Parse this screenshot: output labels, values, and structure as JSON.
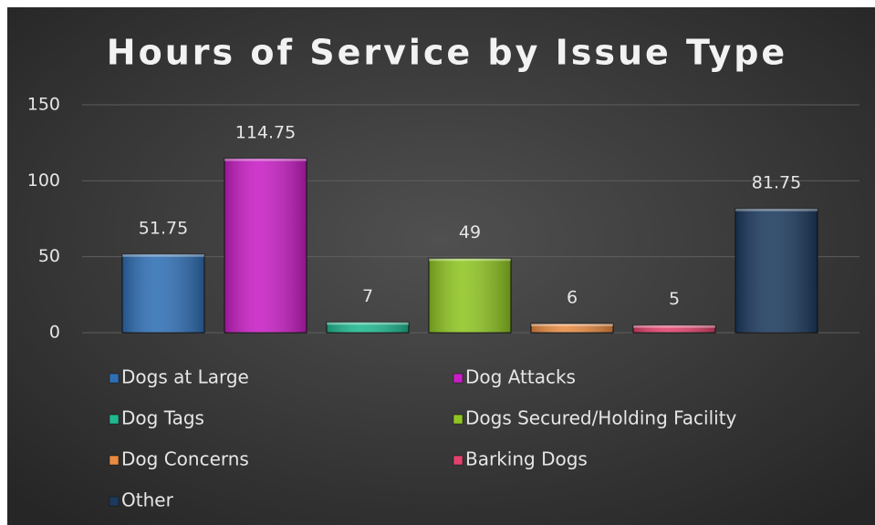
{
  "chart_data": {
    "type": "bar",
    "title": "Hours of Service by Issue Type",
    "categories": [
      "Dogs at Large",
      "Dog Attacks",
      "Dog Tags",
      "Dogs Secured/Holding Facility",
      "Dog Concerns",
      "Barking Dogs",
      "Other"
    ],
    "values": [
      51.75,
      114.75,
      7,
      49,
      6,
      5,
      81.75
    ],
    "colors": [
      "#2f6fb5",
      "#c81ec4",
      "#20b890",
      "#8fc522",
      "#e98b42",
      "#e0426c",
      "#1c3a5e"
    ],
    "ylim": [
      0,
      150
    ],
    "yticks": [
      0,
      50,
      100,
      150
    ],
    "grid": true,
    "legend": "bottom"
  }
}
